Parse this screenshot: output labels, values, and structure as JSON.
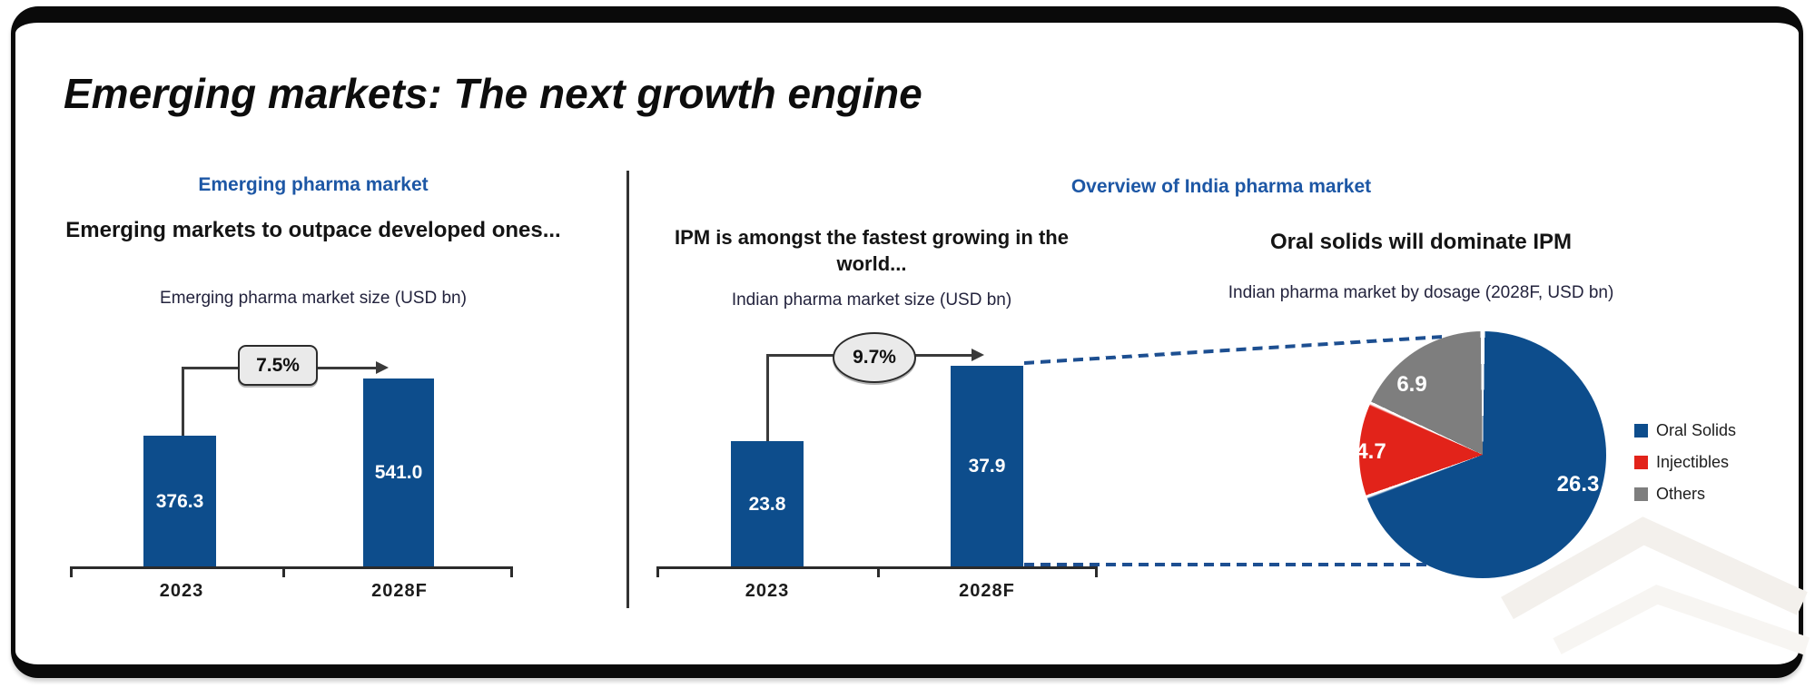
{
  "title": "Emerging markets: The next growth engine",
  "left_panel": {
    "heading": "Emerging pharma market",
    "subheading": "Emerging markets to outpace developed ones...",
    "chart_title": "Emerging pharma market size (USD bn)",
    "growth": "7.5%",
    "bars": [
      {
        "year": "2023",
        "value": "376.3"
      },
      {
        "year": "2028F",
        "value": "541.0"
      }
    ]
  },
  "right_panel": {
    "heading": "Overview of India pharma market"
  },
  "ipm_panel": {
    "subheading": "IPM is amongst the fastest growing in the world...",
    "chart_title": "Indian pharma market size (USD bn)",
    "growth": "9.7%",
    "bars": [
      {
        "year": "2023",
        "value": "23.8"
      },
      {
        "year": "2028F",
        "value": "37.9"
      }
    ]
  },
  "pie_panel": {
    "subheading": "Oral solids will dominate IPM",
    "chart_title": "Indian pharma market by dosage (2028F, USD bn)",
    "slices": [
      {
        "label": "Oral Solids",
        "value": "26.3"
      },
      {
        "label": "Injectibles",
        "value": "4.7"
      },
      {
        "label": "Others",
        "value": "6.9"
      }
    ]
  },
  "colors": {
    "bar_blue": "#0d4d8c",
    "injectibles_red": "#e2231a",
    "others_gray": "#7e7e7e",
    "heading_blue": "#1d57a5",
    "dashed_blue": "#1d4f91",
    "annotation_fill": "#eaeaea",
    "line_dark": "#3a3a3a"
  },
  "chart_data": [
    {
      "type": "bar",
      "title": "Emerging pharma market size (USD bn)",
      "categories": [
        "2023",
        "2028F"
      ],
      "values": [
        376.3,
        541.0
      ],
      "bar_color": "#0d4d8c",
      "annotation": "7.5% CAGR arrow from 2023 bar to 2028F bar",
      "ylim": [
        0,
        560
      ],
      "grid": false
    },
    {
      "type": "bar",
      "title": "Indian pharma market size (USD bn)",
      "categories": [
        "2023",
        "2028F"
      ],
      "values": [
        23.8,
        37.9
      ],
      "bar_color": "#0d4d8c",
      "annotation": "9.7% CAGR arrow from 2023 bar to 2028F bar",
      "ylim": [
        0,
        40
      ],
      "grid": false
    },
    {
      "type": "pie",
      "title": "Indian pharma market by dosage (2028F, USD bn)",
      "labels": [
        "Oral Solids",
        "Injectibles",
        "Others"
      ],
      "values": [
        26.3,
        4.7,
        6.9
      ],
      "colors": [
        "#0d4d8c",
        "#e2231a",
        "#7e7e7e"
      ],
      "start_angle_deg": 0,
      "direction": "clockwise",
      "legend_position": "right"
    }
  ]
}
